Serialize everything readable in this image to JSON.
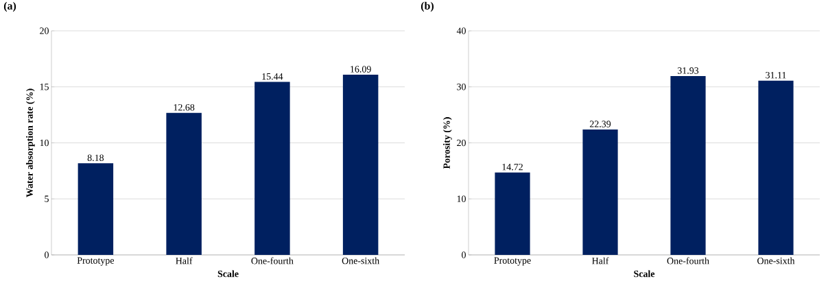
{
  "chart_data": [
    {
      "type": "bar",
      "title": "(a)",
      "xlabel": "Scale",
      "ylabel": "Water absorption rate (%)",
      "categories": [
        "Prototype",
        "Half",
        "One-fourth",
        "One-sixth"
      ],
      "values": [
        8.18,
        12.68,
        15.44,
        16.09
      ],
      "color": "#002060",
      "ylim": [
        0,
        20
      ],
      "yticks": [
        0,
        5,
        10,
        15,
        20
      ],
      "grid": "y",
      "data_labels": true
    },
    {
      "type": "bar",
      "title": "(b)",
      "xlabel": "Scale",
      "ylabel": "Porosity (%)",
      "categories": [
        "Prototype",
        "Half",
        "One-fourth",
        "One-sixth"
      ],
      "values": [
        14.72,
        22.39,
        31.93,
        31.11
      ],
      "color": "#002060",
      "ylim": [
        0,
        40
      ],
      "yticks": [
        0,
        10,
        20,
        30,
        40
      ],
      "grid": "y",
      "data_labels": true
    }
  ]
}
